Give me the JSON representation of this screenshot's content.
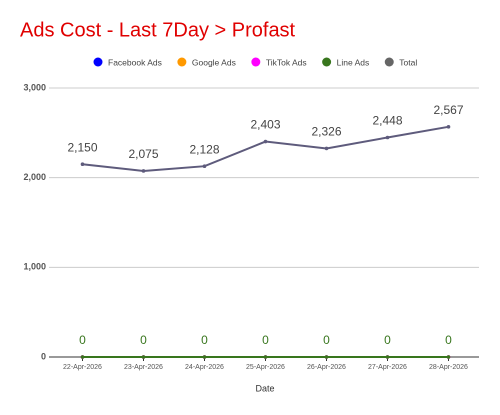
{
  "chart_data": {
    "type": "line",
    "title": "Ads Cost - Last 7Day > Profast",
    "x_label": "Date",
    "categories": [
      "22-Apr-2026",
      "23-Apr-2026",
      "24-Apr-2026",
      "25-Apr-2026",
      "26-Apr-2026",
      "27-Apr-2026",
      "28-Apr-2026"
    ],
    "series": [
      {
        "name": "Facebook Ads",
        "color": "#0000ff",
        "values": [
          0,
          0,
          0,
          0,
          0,
          0,
          0
        ]
      },
      {
        "name": "Google Ads",
        "color": "#ff9900",
        "values": [
          0,
          0,
          0,
          0,
          0,
          0,
          0
        ]
      },
      {
        "name": "TikTok Ads",
        "color": "#ff00ff",
        "values": [
          0,
          0,
          0,
          0,
          0,
          0,
          0
        ]
      },
      {
        "name": "Line Ads",
        "color": "#38761d",
        "values": [
          0,
          0,
          0,
          0,
          0,
          0,
          0
        ],
        "show_labels": true
      },
      {
        "name": "Total",
        "color": "#5e5b7c",
        "values": [
          2150,
          2075,
          2128,
          2403,
          2326,
          2448,
          2567
        ],
        "show_labels": true,
        "value_labels": [
          "2,150",
          "2,075",
          "2,128",
          "2,403",
          "2,326",
          "2,448",
          "2,567"
        ]
      }
    ],
    "ylim": [
      0,
      3000
    ],
    "yticks": [
      0,
      {
        "value": 1000,
        "label": "1,000"
      },
      {
        "value": 2000,
        "label": "2,000"
      },
      {
        "value": 3000,
        "label": "3,000"
      }
    ],
    "grid": true
  }
}
